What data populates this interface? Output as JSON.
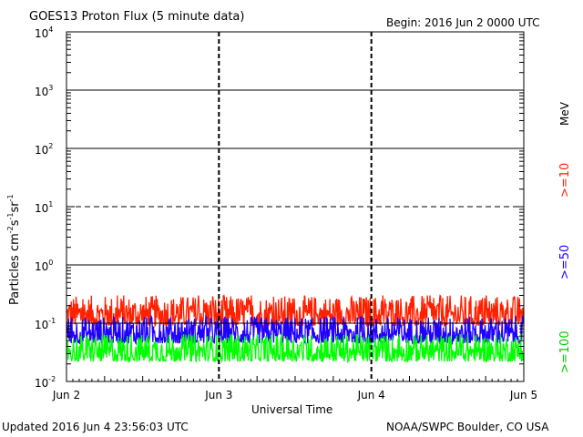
{
  "header": {
    "title": "GOES13 Proton Flux (5 minute data)",
    "begin": "Begin: 2016 Jun 2 0000 UTC"
  },
  "footer": {
    "updated": "Updated 2016 Jun  4 23:56:03 UTC",
    "credit": "NOAA/SWPC Boulder, CO USA"
  },
  "chart_data": {
    "type": "line",
    "ylabel": {
      "base": "Particles cm",
      "e1": "-2",
      "u2": "s",
      "e2": "-1",
      "u3": "sr",
      "e3": "-1"
    },
    "xlabel": "Universal Time",
    "x_ticks": [
      "Jun 2",
      "Jun 3",
      "Jun 4",
      "Jun 5"
    ],
    "xlim": [
      "2016-06-02T00:00Z",
      "2016-06-05T00:00Z"
    ],
    "y_scale": "log",
    "ylim": [
      0.01,
      10000
    ],
    "y_ticks": [
      {
        "value": 0.01,
        "base": "10",
        "exp": "-2"
      },
      {
        "value": 0.1,
        "base": "10",
        "exp": "-1"
      },
      {
        "value": 1,
        "base": "10",
        "exp": "0"
      },
      {
        "value": 10,
        "base": "10",
        "exp": "1"
      },
      {
        "value": 100,
        "base": "10",
        "exp": "2"
      },
      {
        "value": 1000,
        "base": "10",
        "exp": "3"
      },
      {
        "value": 10000,
        "base": "10",
        "exp": "4"
      }
    ],
    "reference_lines": [
      {
        "value": 0.1,
        "style": "solid"
      },
      {
        "value": 1,
        "style": "solid"
      },
      {
        "value": 10,
        "style": "dashed"
      },
      {
        "value": 100,
        "style": "solid"
      },
      {
        "value": 1000,
        "style": "solid"
      }
    ],
    "units_label": "MeV",
    "series": [
      {
        "name": ">=10",
        "color": "#ff2000",
        "low": 0.09,
        "high": 0.3
      },
      {
        "name": ">=50",
        "color": "#2000ff",
        "low": 0.045,
        "high": 0.13
      },
      {
        "name": ">=100",
        "color": "#00ff00",
        "low": 0.022,
        "high": 0.065
      }
    ],
    "grid": true,
    "legend": "right"
  }
}
